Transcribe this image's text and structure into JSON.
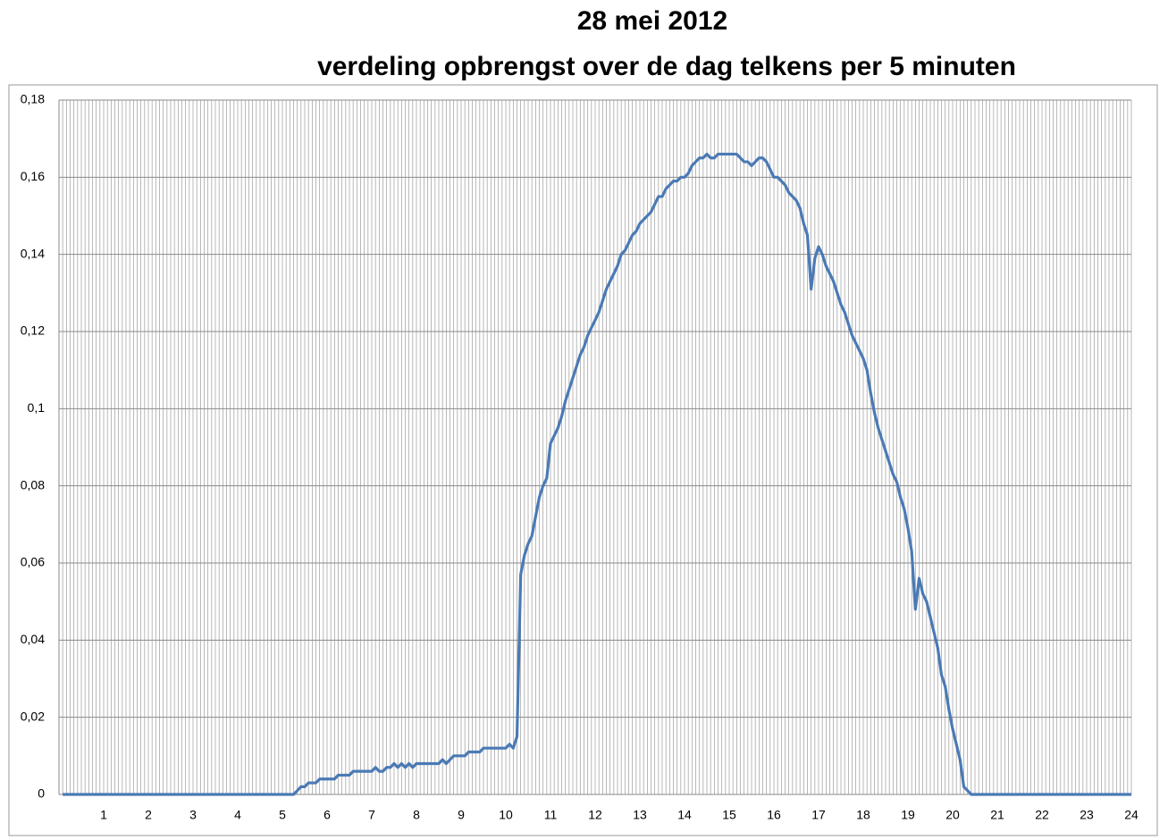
{
  "chart_data": {
    "type": "line",
    "title": "28 mei 2012",
    "subtitle": "verdeling opbrengst over de dag telkens per 5 minuten",
    "categories": [
      null,
      null,
      null,
      null,
      null,
      null,
      null,
      null,
      null,
      null,
      null,
      "1",
      null,
      null,
      null,
      null,
      null,
      null,
      null,
      null,
      null,
      null,
      null,
      "2",
      null,
      null,
      null,
      null,
      null,
      null,
      null,
      null,
      null,
      null,
      null,
      "3",
      null,
      null,
      null,
      null,
      null,
      null,
      null,
      null,
      null,
      null,
      null,
      "4",
      null,
      null,
      null,
      null,
      null,
      null,
      null,
      null,
      null,
      null,
      null,
      "5",
      null,
      null,
      null,
      null,
      null,
      null,
      null,
      null,
      null,
      null,
      null,
      "6",
      null,
      null,
      null,
      null,
      null,
      null,
      null,
      null,
      null,
      null,
      null,
      "7",
      null,
      null,
      null,
      null,
      null,
      null,
      null,
      null,
      null,
      null,
      null,
      "8",
      null,
      null,
      null,
      null,
      null,
      null,
      null,
      null,
      null,
      null,
      null,
      "9",
      null,
      null,
      null,
      null,
      null,
      null,
      null,
      null,
      null,
      null,
      null,
      "10",
      null,
      null,
      null,
      null,
      null,
      null,
      null,
      null,
      null,
      null,
      null,
      "11",
      null,
      null,
      null,
      null,
      null,
      null,
      null,
      null,
      null,
      null,
      null,
      "12",
      null,
      null,
      null,
      null,
      null,
      null,
      null,
      null,
      null,
      null,
      null,
      "13",
      null,
      null,
      null,
      null,
      null,
      null,
      null,
      null,
      null,
      null,
      null,
      "14",
      null,
      null,
      null,
      null,
      null,
      null,
      null,
      null,
      null,
      null,
      null,
      "15",
      null,
      null,
      null,
      null,
      null,
      null,
      null,
      null,
      null,
      null,
      null,
      "16",
      null,
      null,
      null,
      null,
      null,
      null,
      null,
      null,
      null,
      null,
      null,
      "17",
      null,
      null,
      null,
      null,
      null,
      null,
      null,
      null,
      null,
      null,
      null,
      "18",
      null,
      null,
      null,
      null,
      null,
      null,
      null,
      null,
      null,
      null,
      null,
      "19",
      null,
      null,
      null,
      null,
      null,
      null,
      null,
      null,
      null,
      null,
      null,
      "20",
      null,
      null,
      null,
      null,
      null,
      null,
      null,
      null,
      null,
      null,
      null,
      "21",
      null,
      null,
      null,
      null,
      null,
      null,
      null,
      null,
      null,
      null,
      null,
      "22",
      null,
      null,
      null,
      null,
      null,
      null,
      null,
      null,
      null,
      null,
      null,
      "23",
      null,
      null,
      null,
      null,
      null,
      null,
      null,
      null,
      null,
      null,
      null,
      "24"
    ],
    "series": [
      {
        "color": "#4a7ab5",
        "values": [
          0,
          0,
          0,
          0,
          0,
          0,
          0,
          0,
          0,
          0,
          0,
          0,
          0,
          0,
          0,
          0,
          0,
          0,
          0,
          0,
          0,
          0,
          0,
          0,
          0,
          0,
          0,
          0,
          0,
          0,
          0,
          0,
          0,
          0,
          0,
          0,
          0,
          0,
          0,
          0,
          0,
          0,
          0,
          0,
          0,
          0,
          0,
          0,
          0,
          0,
          0,
          0,
          0,
          0,
          0,
          0,
          0,
          0,
          0,
          0,
          0,
          0,
          0,
          0.001,
          0.002,
          0.002,
          0.003,
          0.003,
          0.003,
          0.004,
          0.004,
          0.004,
          0.004,
          0.004,
          0.005,
          0.005,
          0.005,
          0.005,
          0.006,
          0.006,
          0.006,
          0.006,
          0.006,
          0.006,
          0.007,
          0.006,
          0.006,
          0.007,
          0.007,
          0.008,
          0.007,
          0.008,
          0.007,
          0.008,
          0.007,
          0.008,
          0.008,
          0.008,
          0.008,
          0.008,
          0.008,
          0.008,
          0.009,
          0.008,
          0.009,
          0.01,
          0.01,
          0.01,
          0.01,
          0.011,
          0.011,
          0.011,
          0.011,
          0.012,
          0.012,
          0.012,
          0.012,
          0.012,
          0.012,
          0.012,
          0.013,
          0.012,
          0.015,
          0.057,
          0.062,
          0.065,
          0.067,
          0.072,
          0.077,
          0.08,
          0.082,
          0.091,
          0.093,
          0.095,
          0.098,
          0.102,
          0.105,
          0.108,
          0.111,
          0.114,
          0.116,
          0.119,
          0.121,
          0.123,
          0.125,
          0.128,
          0.131,
          0.133,
          0.135,
          0.137,
          0.14,
          0.141,
          0.143,
          0.145,
          0.146,
          0.148,
          0.149,
          0.15,
          0.151,
          0.153,
          0.155,
          0.155,
          0.157,
          0.158,
          0.159,
          0.159,
          0.16,
          0.16,
          0.161,
          0.163,
          0.164,
          0.165,
          0.165,
          0.166,
          0.165,
          0.165,
          0.166,
          0.166,
          0.166,
          0.166,
          0.166,
          0.166,
          0.165,
          0.164,
          0.164,
          0.163,
          0.164,
          0.165,
          0.165,
          0.164,
          0.162,
          0.16,
          0.16,
          0.159,
          0.158,
          0.156,
          0.155,
          0.154,
          0.152,
          0.148,
          0.145,
          0.131,
          0.139,
          0.142,
          0.14,
          0.137,
          0.135,
          0.133,
          0.13,
          0.127,
          0.125,
          0.122,
          0.119,
          0.117,
          0.115,
          0.113,
          0.11,
          0.104,
          0.099,
          0.095,
          0.092,
          0.089,
          0.086,
          0.083,
          0.081,
          0.077,
          0.074,
          0.069,
          0.063,
          0.048,
          0.056,
          0.052,
          0.05,
          0.046,
          0.042,
          0.038,
          0.031,
          0.028,
          0.022,
          0.017,
          0.013,
          0.009,
          0.002,
          0.001,
          0,
          0,
          0,
          0,
          0,
          0,
          0,
          0,
          0,
          0,
          0,
          0,
          0,
          0,
          0,
          0,
          0,
          0,
          0,
          0,
          0,
          0,
          0,
          0,
          0,
          0,
          0,
          0,
          0,
          0,
          0,
          0,
          0,
          0,
          0,
          0,
          0,
          0,
          0,
          0,
          0,
          0,
          0,
          0
        ]
      }
    ],
    "ylim": [
      0,
      0.18
    ],
    "yticks": [
      0,
      {
        "value": 0.02,
        "label": "0,02"
      },
      {
        "value": 0.04,
        "label": "0,04"
      },
      {
        "value": 0.06,
        "label": "0,06"
      },
      {
        "value": 0.08,
        "label": "0,08"
      },
      {
        "value": 0.1,
        "label": "0,1"
      },
      {
        "value": 0.12,
        "label": "0,12"
      },
      {
        "value": 0.14,
        "label": "0,14"
      },
      {
        "value": 0.16,
        "label": "0,16"
      },
      {
        "value": 0.18,
        "label": "0,18"
      }
    ],
    "grid": true
  }
}
